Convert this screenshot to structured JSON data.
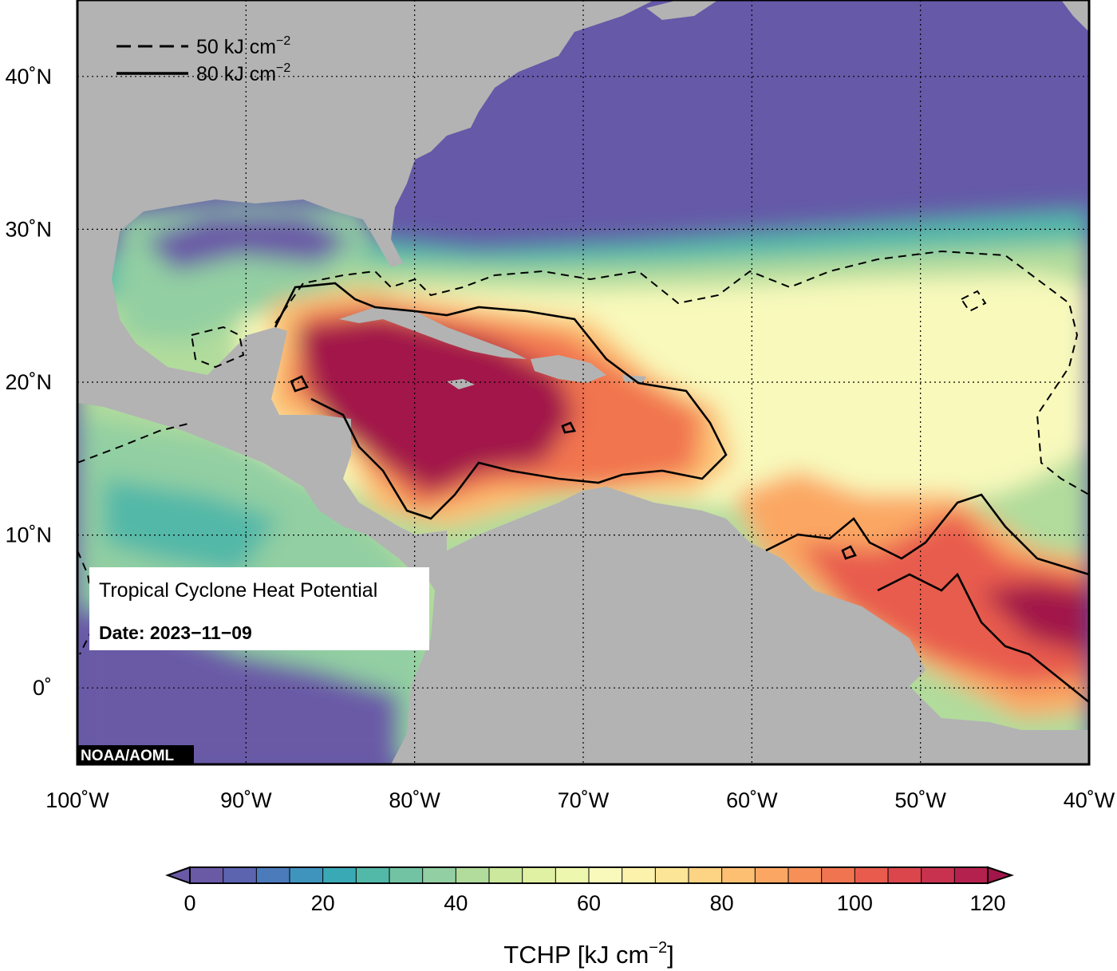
{
  "map": {
    "lon_range": [
      -100,
      -40
    ],
    "lat_range": [
      -5,
      45
    ],
    "lon_ticks": [
      {
        "value": -100,
        "label": "100˚W"
      },
      {
        "value": -90,
        "label": "90˚W"
      },
      {
        "value": -80,
        "label": "80˚W"
      },
      {
        "value": -70,
        "label": "70˚W"
      },
      {
        "value": -60,
        "label": "60˚W"
      },
      {
        "value": -50,
        "label": "50˚W"
      },
      {
        "value": -40,
        "label": "40˚W"
      }
    ],
    "lat_ticks": [
      {
        "value": 0,
        "label": "0˚"
      },
      {
        "value": 10,
        "label": "10˚N"
      },
      {
        "value": 20,
        "label": "20˚N"
      },
      {
        "value": 30,
        "label": "30˚N"
      },
      {
        "value": 40,
        "label": "40˚N"
      }
    ],
    "grid": "dotted",
    "colors": {
      "land": "#b3b3b3",
      "ocean_low": "#6559a8",
      "ocean_high": "#a3144a"
    }
  },
  "contour_legend": {
    "placement": "top-left",
    "items": [
      {
        "style": "dashed",
        "value": "50",
        "unit": "kJ cm",
        "exp": "−2"
      },
      {
        "style": "solid",
        "value": "80",
        "unit": "kJ cm",
        "exp": "−2"
      }
    ]
  },
  "info_box": {
    "title": "Tropical Cyclone Heat Potential",
    "date_label": "Date: 2023−11−09"
  },
  "credit": "NOAA/AOML",
  "colorbar": {
    "min": 0,
    "max": 120,
    "step": 5,
    "ticks": [
      {
        "value": 0,
        "label": "0"
      },
      {
        "value": 20,
        "label": "20"
      },
      {
        "value": 40,
        "label": "40"
      },
      {
        "value": 60,
        "label": "60"
      },
      {
        "value": 80,
        "label": "80"
      },
      {
        "value": 100,
        "label": "100"
      },
      {
        "value": 120,
        "label": "120"
      }
    ],
    "title_main": "TCHP [kJ cm",
    "title_exp": "−2",
    "title_end": "]",
    "colors": [
      "#6a5aa6",
      "#5c64b0",
      "#4c7bbb",
      "#3f94be",
      "#3aa9b6",
      "#52b8a8",
      "#71c3a3",
      "#92cfa2",
      "#b1dc9c",
      "#cbe89d",
      "#e0f1a3",
      "#eef7ae",
      "#f8f9bb",
      "#fdf2ac",
      "#fde597",
      "#fdd384",
      "#fdbf72",
      "#fba763",
      "#f78f58",
      "#f17450",
      "#e85b4d",
      "#db454c",
      "#c9324f",
      "#b5214e",
      "#a2154a"
    ]
  }
}
